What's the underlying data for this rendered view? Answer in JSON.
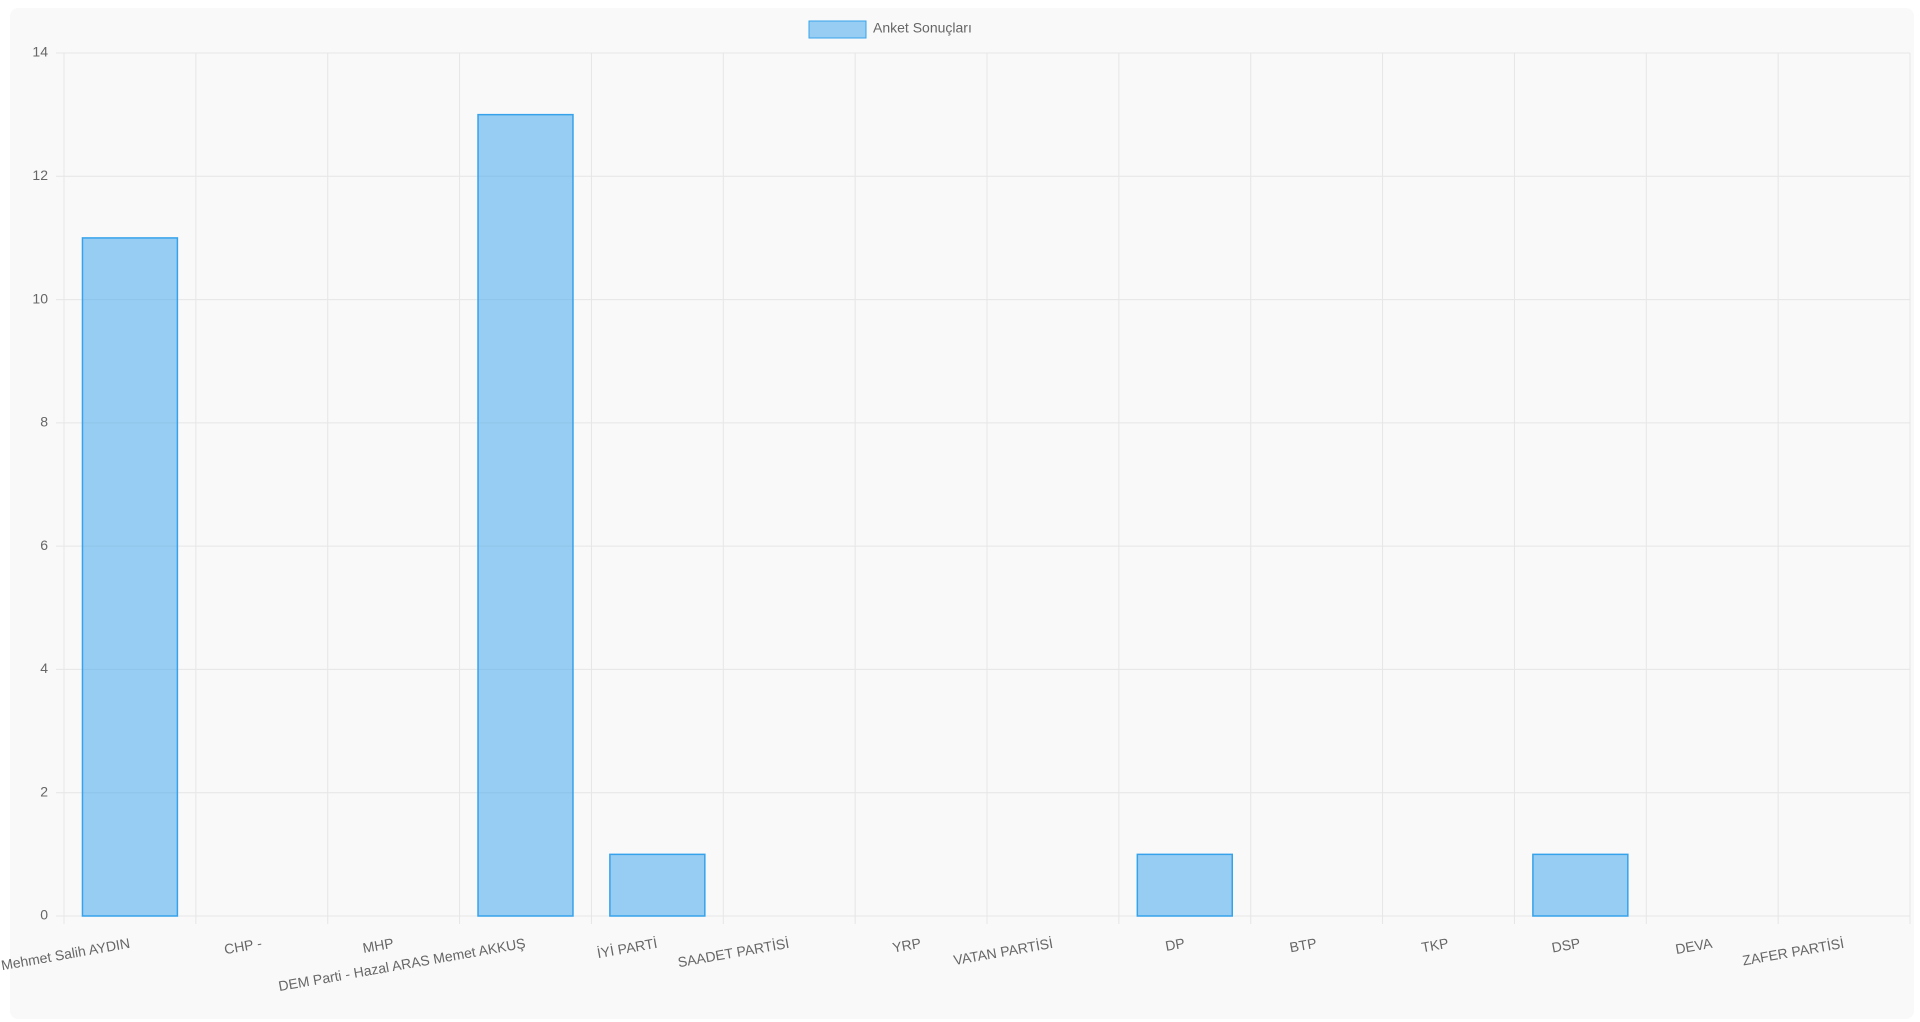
{
  "chart_data": {
    "type": "bar",
    "legend": "Anket Sonuçları",
    "categories": [
      "Mehmet Salih AYDIN",
      "CHP -",
      "MHP",
      "DEM Parti - Hazal ARAS Memet AKKUŞ",
      "İYİ PARTİ",
      "SAADET PARTİSİ",
      "YRP",
      "VATAN PARTİSİ",
      "DP",
      "BTP",
      "TKP",
      "DSP",
      "DEVA",
      "ZAFER PARTİSİ"
    ],
    "values": [
      11,
      0,
      0,
      13,
      1,
      0,
      0,
      0,
      1,
      0,
      0,
      1,
      0,
      0
    ],
    "color": "#36a2eb",
    "ylim": [
      0,
      14
    ],
    "yticks": [
      0,
      2,
      4,
      6,
      8,
      10,
      12,
      14
    ],
    "grid": true
  }
}
